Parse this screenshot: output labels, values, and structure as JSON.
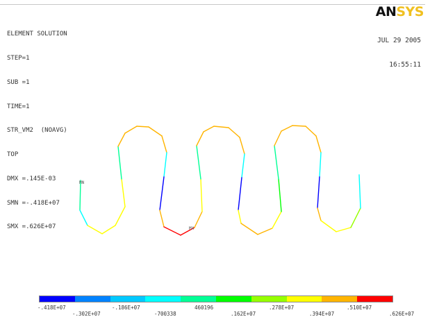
{
  "header": {
    "title": "ELEMENT SOLUTION",
    "lines": [
      "STEP=1",
      "SUB =1",
      "TIME=1",
      "STR_VM2  (NOAVG)",
      "TOP",
      "DMX =.145E-03",
      "SMN =-.418E+07",
      "SMX =.626E+07"
    ]
  },
  "logo": {
    "part1": "AN",
    "part2": "SYS"
  },
  "datetime": {
    "date": "JUL 29 2005",
    "time": "16:55:11"
  },
  "markers": {
    "mn": "MN",
    "mx": "MX"
  },
  "colors": [
    "#0000ff",
    "#0082ff",
    "#00c8ff",
    "#00ffff",
    "#00ff96",
    "#00ff00",
    "#96ff00",
    "#ffff00",
    "#ffb400",
    "#ff0000"
  ],
  "legend": {
    "upper": [
      "-.418E+07",
      "-.186E+07",
      "460196",
      ".278E+07",
      ".510E+07"
    ],
    "lower": [
      "-.302E+07",
      "-700338",
      ".162E+07",
      ".394E+07",
      ".626E+07"
    ]
  }
}
